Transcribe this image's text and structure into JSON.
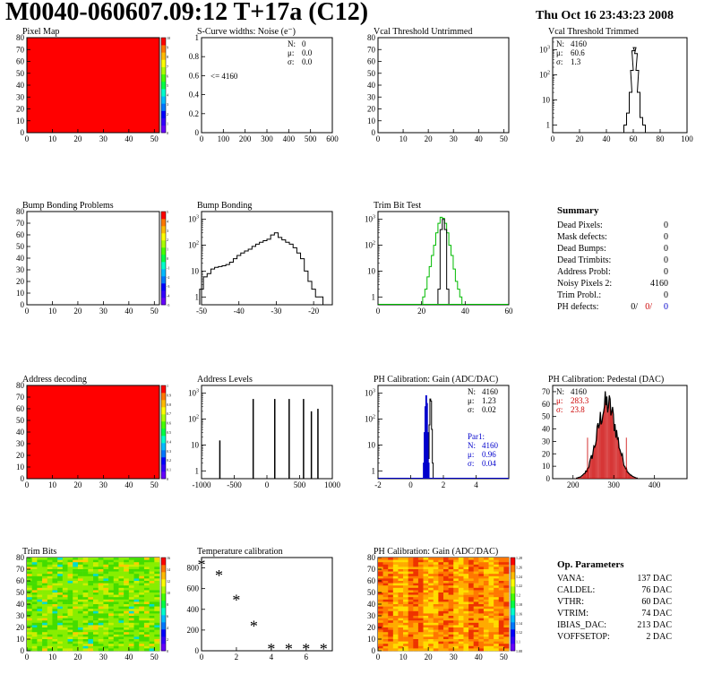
{
  "header": {
    "title": "M0040-060607.09:12 T+17a (C12)",
    "date": "Thu Oct 16 23:43:23 2008"
  },
  "colors": {
    "green": "#00bb00",
    "red": "#cc0000",
    "blue": "#0000cc"
  },
  "summary": {
    "title": "Summary",
    "rows": [
      {
        "label": "Dead Pixels:",
        "value": "0"
      },
      {
        "label": "Mask defects:",
        "value": "0"
      },
      {
        "label": "Dead Bumps:",
        "value": "0"
      },
      {
        "label": "Dead Trimbits:",
        "value": "0"
      },
      {
        "label": "Address Probl:",
        "value": "0"
      },
      {
        "label": "Noisy Pixels 2:",
        "value": "4160"
      },
      {
        "label": "Trim Probl.:",
        "value": "0"
      }
    ],
    "ph_label": "PH defects:",
    "ph_values": [
      "0/",
      "0/",
      "0"
    ]
  },
  "op_params": {
    "title": "Op. Parameters",
    "rows": [
      {
        "label": "VANA:",
        "value": "137 DAC"
      },
      {
        "label": "CALDEL:",
        "value": "76 DAC"
      },
      {
        "label": "VTHR:",
        "value": "60 DAC"
      },
      {
        "label": "VTRIM:",
        "value": "74 DAC"
      },
      {
        "label": "IBIAS_DAC:",
        "value": "213 DAC"
      },
      {
        "label": "VOFFSETOP:",
        "value": "2 DAC"
      }
    ]
  },
  "chart_data": [
    {
      "type": "heatmap",
      "title": "Pixel Map",
      "fill": "uniform-red",
      "xlim": [
        0,
        52
      ],
      "ylim": [
        0,
        80
      ],
      "xticks": [
        "0",
        "10",
        "20",
        "30",
        "40",
        "50"
      ],
      "yticks": [
        "0",
        "10",
        "20",
        "30",
        "40",
        "50",
        "60",
        "70",
        "80"
      ],
      "zticks": [
        "0",
        "1",
        "2",
        "3",
        "4",
        "5",
        "6",
        "7",
        "8",
        "9",
        "10"
      ]
    },
    {
      "type": "histogram",
      "title": "S-Curve widths: Noise (e⁻)",
      "xlim": [
        0,
        600
      ],
      "ylim": [
        0,
        1
      ],
      "xticks": [
        "0",
        "100",
        "200",
        "300",
        "400",
        "500",
        "600"
      ],
      "yticks": [
        "0",
        "0.2",
        "0.4",
        "0.6",
        "0.8",
        "1"
      ],
      "annotation": "<= 4160",
      "stats": [
        {
          "label": "N:",
          "value": "0"
        },
        {
          "label": "μ:",
          "value": "0.0"
        },
        {
          "label": "σ:",
          "value": "0.0"
        }
      ]
    },
    {
      "type": "histogram",
      "title": "Vcal Threshold Untrimmed",
      "xlim": [
        0,
        52
      ],
      "ylim": [
        0,
        80
      ],
      "xticks": [
        "0",
        "10",
        "20",
        "30",
        "40",
        "50"
      ],
      "yticks": [
        "0",
        "10",
        "20",
        "30",
        "40",
        "50",
        "60",
        "70",
        "80"
      ]
    },
    {
      "type": "histogram",
      "title": "Vcal Threshold Trimmed",
      "log_y": true,
      "xlim": [
        0,
        100
      ],
      "ylim": [
        0.5,
        3000
      ],
      "xticks": [
        "0",
        "20",
        "40",
        "60",
        "80",
        "100"
      ],
      "stats": [
        {
          "label": "N:",
          "value": "4160"
        },
        {
          "label": "μ:",
          "value": "60.6"
        },
        {
          "label": "σ:",
          "value": "1.3"
        }
      ],
      "series": [
        {
          "x": [
            54,
            56,
            58,
            59,
            60,
            61,
            62,
            63,
            64,
            66,
            68
          ],
          "y": [
            1,
            3,
            20,
            150,
            900,
            1200,
            700,
            150,
            20,
            2,
            1
          ]
        }
      ]
    },
    {
      "type": "heatmap",
      "title": "Bump Bonding Problems",
      "fill": "empty",
      "xlim": [
        0,
        52
      ],
      "ylim": [
        0,
        80
      ],
      "xticks": [
        "0",
        "10",
        "20",
        "30",
        "40",
        "50"
      ],
      "yticks": [
        "0",
        "10",
        "20",
        "30",
        "40",
        "50",
        "60",
        "70",
        "80"
      ],
      "zticks": [
        "-5",
        "-4",
        "-3",
        "-2",
        "-1",
        "0",
        "1",
        "2",
        "3",
        "4",
        "5"
      ]
    },
    {
      "type": "histogram",
      "title": "Bump Bonding",
      "log_y": true,
      "xlim": [
        -50,
        -15
      ],
      "ylim": [
        0.5,
        2000
      ],
      "xticks": [
        "-50",
        "-40",
        "-30",
        "-20"
      ],
      "series": [
        {
          "x": [
            -50,
            -49,
            -48,
            -47,
            -46,
            -45,
            -44,
            -43,
            -42,
            -41,
            -40,
            -39,
            -38,
            -37,
            -36,
            -35,
            -34,
            -33,
            -32,
            -31,
            -30,
            -29,
            -28,
            -27,
            -26,
            -25,
            -24,
            -23,
            -22,
            -21,
            -20,
            -19,
            -18
          ],
          "y": [
            2,
            6,
            8,
            12,
            14,
            15,
            16,
            18,
            22,
            30,
            40,
            50,
            60,
            70,
            90,
            110,
            130,
            150,
            170,
            250,
            300,
            200,
            160,
            130,
            110,
            80,
            50,
            30,
            10,
            4,
            2,
            1,
            1
          ]
        }
      ]
    },
    {
      "type": "histogram",
      "title": "Trim Bit Test",
      "log_y": true,
      "xlim": [
        0,
        60
      ],
      "ylim": [
        0.5,
        2000
      ],
      "xticks": [
        "0",
        "20",
        "40",
        "60"
      ],
      "series": [
        {
          "color": "green",
          "x": [
            21,
            22,
            23,
            24,
            25,
            26,
            27,
            28,
            29,
            30,
            31,
            32,
            33,
            34,
            35,
            36,
            37,
            38
          ],
          "y": [
            1,
            2,
            6,
            15,
            40,
            100,
            300,
            700,
            1200,
            1100,
            700,
            300,
            100,
            40,
            12,
            4,
            2,
            1
          ]
        },
        {
          "color": "black",
          "x": [
            28,
            29,
            30,
            31,
            32
          ],
          "y": [
            2,
            400,
            1000,
            400,
            2
          ]
        }
      ]
    },
    {
      "type": "heatmap",
      "title": "Address decoding",
      "fill": "uniform-red",
      "xlim": [
        0,
        52
      ],
      "ylim": [
        0,
        80
      ],
      "xticks": [
        "0",
        "10",
        "20",
        "30",
        "40",
        "50"
      ],
      "yticks": [
        "0",
        "10",
        "20",
        "30",
        "40",
        "50",
        "60",
        "70",
        "80"
      ],
      "zticks": [
        "0",
        "0.1",
        "0.2",
        "0.3",
        "0.4",
        "0.5",
        "0.6",
        "0.7",
        "0.8",
        "0.9",
        "1"
      ]
    },
    {
      "type": "histogram",
      "title": "Address Levels",
      "log_y": true,
      "xlim": [
        -1000,
        1000
      ],
      "ylim": [
        0.5,
        2000
      ],
      "xticks": [
        "-1000",
        "-500",
        "0",
        "500",
        "1000"
      ],
      "series": [
        {
          "peaks": [
            {
              "x": -720,
              "h": 15
            },
            {
              "x": -210,
              "h": 600
            },
            {
              "x": 120,
              "h": 600
            },
            {
              "x": 340,
              "h": 600
            },
            {
              "x": 560,
              "h": 600
            },
            {
              "x": 680,
              "h": 200
            },
            {
              "x": 780,
              "h": 250
            }
          ]
        }
      ]
    },
    {
      "type": "histogram",
      "title": "PH Calibration: Gain (ADC/DAC)",
      "log_y": true,
      "xlim": [
        -2,
        6
      ],
      "ylim": [
        0.5,
        2000
      ],
      "xticks": [
        "-2",
        "0",
        "2",
        "4"
      ],
      "stats": [
        {
          "label": "N:",
          "value": "4160"
        },
        {
          "label": "μ:",
          "value": "1.23"
        },
        {
          "label": "σ:",
          "value": "0.02"
        }
      ],
      "stats2": [
        {
          "label": "Par1:",
          "value": ""
        },
        {
          "label": "N:",
          "value": "4160"
        },
        {
          "label": "μ:",
          "value": "0.96"
        },
        {
          "label": "σ:",
          "value": "0.04"
        }
      ],
      "series": [
        {
          "color": "black",
          "x": [
            1.1,
            1.15,
            1.2,
            1.25,
            1.3,
            1.35
          ],
          "y": [
            3,
            60,
            600,
            500,
            40,
            2
          ]
        },
        {
          "color": "blue",
          "x": [
            0.8,
            0.85,
            0.9,
            0.95,
            1.0,
            1.05,
            1.1
          ],
          "y": [
            2,
            30,
            300,
            800,
            400,
            30,
            2
          ]
        }
      ]
    },
    {
      "type": "histogram",
      "title": "PH Calibration: Pedestal (DAC)",
      "xlim": [
        150,
        480
      ],
      "ylim": [
        0,
        75
      ],
      "xticks": [
        "200",
        "300",
        "400"
      ],
      "yticks": [
        "0",
        "10",
        "20",
        "30",
        "40",
        "50",
        "60",
        "70"
      ],
      "stats": [
        {
          "label": "N:",
          "value": "4160"
        },
        {
          "label": "μ:",
          "value": "283.3"
        },
        {
          "label": "σ:",
          "value": "23.8"
        }
      ],
      "series": [
        {
          "mean": 283.3,
          "sigma": 23.8,
          "peak": 60
        }
      ]
    },
    {
      "type": "heatmap",
      "title": "Trim Bits",
      "fill": "noise-green",
      "xlim": [
        0,
        52
      ],
      "ylim": [
        0,
        80
      ],
      "xticks": [
        "0",
        "10",
        "20",
        "30",
        "40",
        "50"
      ],
      "yticks": [
        "0",
        "10",
        "20",
        "30",
        "40",
        "50",
        "60",
        "70",
        "80"
      ],
      "zticks": [
        "0",
        "2",
        "4",
        "6",
        "8",
        "10",
        "12",
        "14",
        "16"
      ]
    },
    {
      "type": "scatter",
      "title": "Temperature calibration",
      "xlim": [
        0,
        7.5
      ],
      "ylim": [
        0,
        900
      ],
      "xticks": [
        "0",
        "2",
        "4",
        "6"
      ],
      "yticks": [
        "0",
        "200",
        "400",
        "600",
        "800"
      ],
      "series": [
        {
          "x": [
            0,
            1,
            2,
            3,
            4,
            5,
            6,
            7
          ],
          "y": [
            820,
            720,
            480,
            230,
            10,
            10,
            10,
            10
          ]
        }
      ]
    },
    {
      "type": "heatmap",
      "title": "PH Calibration: Gain (ADC/DAC)",
      "fill": "noise-orange",
      "xlim": [
        0,
        52
      ],
      "ylim": [
        0,
        80
      ],
      "xticks": [
        "0",
        "10",
        "20",
        "30",
        "40",
        "50"
      ],
      "yticks": [
        "0",
        "10",
        "20",
        "30",
        "40",
        "50",
        "60",
        "70",
        "80"
      ],
      "zticks": [
        "1.08",
        "1.1",
        "1.12",
        "1.14",
        "1.16",
        "1.18",
        "1.2",
        "1.22",
        "1.24",
        "1.26",
        "1.28"
      ]
    }
  ]
}
